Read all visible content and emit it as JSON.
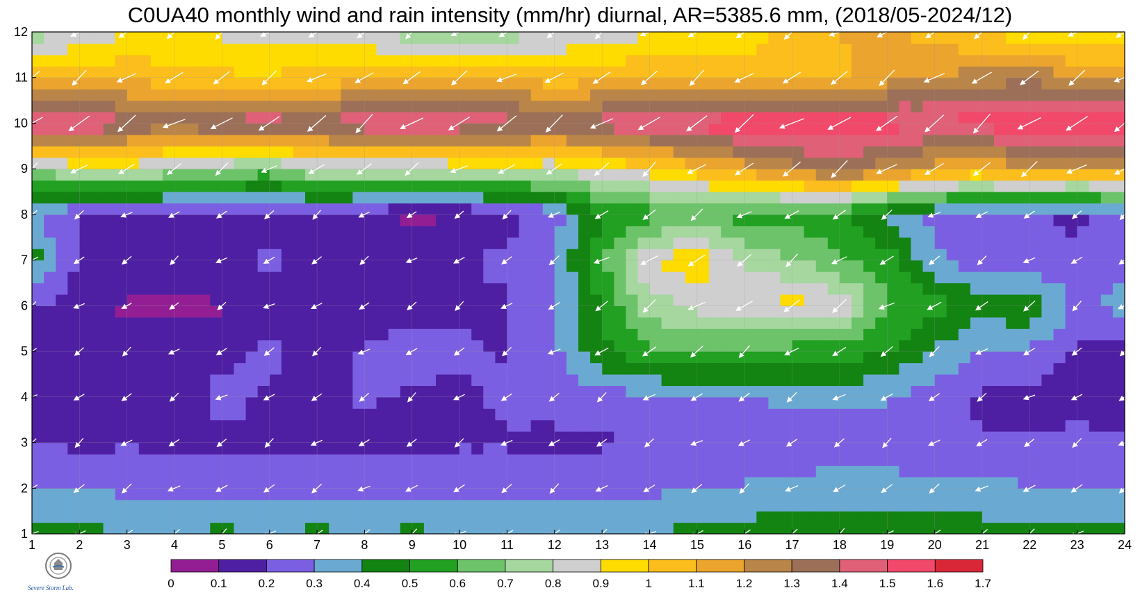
{
  "title": "C0UA40 monthly wind and rain intensity (mm/hr) diurnal, AR=5385.6 mm, (2018/05-2024/12)",
  "chart_data": {
    "type": "heatmap",
    "title": "C0UA40 monthly wind and rain intensity (mm/hr) diurnal, AR=5385.6 mm, (2018/05-2024/12)",
    "xlabel": "",
    "ylabel": "",
    "x": [
      1,
      2,
      3,
      4,
      5,
      6,
      7,
      8,
      9,
      10,
      11,
      12,
      13,
      14,
      15,
      16,
      17,
      18,
      19,
      20,
      21,
      22,
      23,
      24
    ],
    "y": [
      1,
      2,
      3,
      4,
      5,
      6,
      7,
      8,
      9,
      10,
      11,
      12
    ],
    "xlim": [
      1,
      24
    ],
    "ylim": [
      1,
      12
    ],
    "x_ticks": [
      "1",
      "2",
      "3",
      "4",
      "5",
      "6",
      "7",
      "8",
      "9",
      "10",
      "11",
      "12",
      "13",
      "14",
      "15",
      "16",
      "17",
      "18",
      "19",
      "20",
      "21",
      "22",
      "23",
      "24"
    ],
    "y_ticks": [
      "1",
      "2",
      "3",
      "4",
      "5",
      "6",
      "7",
      "8",
      "9",
      "10",
      "11",
      "12"
    ],
    "grid": true,
    "rain_intensity_mm_per_hr": [
      [
        0.45,
        0.42,
        0.41,
        0.41,
        0.42,
        0.41,
        0.42,
        0.41,
        0.42,
        0.41,
        0.41,
        0.39,
        0.38,
        0.41,
        0.42,
        0.45,
        0.46,
        0.47,
        0.47,
        0.46,
        0.45,
        0.43,
        0.42,
        0.42
      ],
      [
        0.3,
        0.3,
        0.28,
        0.27,
        0.27,
        0.26,
        0.28,
        0.26,
        0.28,
        0.27,
        0.27,
        0.26,
        0.27,
        0.28,
        0.3,
        0.31,
        0.33,
        0.35,
        0.34,
        0.33,
        0.32,
        0.31,
        0.31,
        0.3
      ],
      [
        0.2,
        0.18,
        0.19,
        0.18,
        0.19,
        0.18,
        0.18,
        0.17,
        0.18,
        0.19,
        0.19,
        0.18,
        0.19,
        0.2,
        0.21,
        0.22,
        0.23,
        0.25,
        0.24,
        0.22,
        0.21,
        0.21,
        0.22,
        0.2
      ],
      [
        0.18,
        0.17,
        0.18,
        0.17,
        0.22,
        0.19,
        0.18,
        0.21,
        0.19,
        0.18,
        0.22,
        0.23,
        0.25,
        0.28,
        0.3,
        0.3,
        0.32,
        0.33,
        0.31,
        0.26,
        0.18,
        0.17,
        0.17,
        0.19
      ],
      [
        0.17,
        0.16,
        0.17,
        0.16,
        0.18,
        0.22,
        0.16,
        0.21,
        0.23,
        0.22,
        0.19,
        0.28,
        0.48,
        0.58,
        0.62,
        0.58,
        0.55,
        0.55,
        0.5,
        0.38,
        0.28,
        0.28,
        0.18,
        0.17
      ],
      [
        0.2,
        0.15,
        0.08,
        0.08,
        0.09,
        0.17,
        0.18,
        0.15,
        0.17,
        0.18,
        0.19,
        0.29,
        0.52,
        0.75,
        0.82,
        0.88,
        0.95,
        0.88,
        0.62,
        0.55,
        0.45,
        0.5,
        0.28,
        0.33
      ],
      [
        0.45,
        0.19,
        0.18,
        0.17,
        0.18,
        0.21,
        0.18,
        0.16,
        0.14,
        0.19,
        0.22,
        0.31,
        0.58,
        0.9,
        0.98,
        0.78,
        0.7,
        0.62,
        0.55,
        0.32,
        0.22,
        0.21,
        0.21,
        0.28
      ],
      [
        0.32,
        0.18,
        0.18,
        0.18,
        0.18,
        0.19,
        0.18,
        0.16,
        0.08,
        0.1,
        0.17,
        0.25,
        0.48,
        0.55,
        0.62,
        0.55,
        0.55,
        0.52,
        0.38,
        0.28,
        0.25,
        0.22,
        0.18,
        0.3
      ],
      [
        0.72,
        0.82,
        0.85,
        0.75,
        0.72,
        0.65,
        0.82,
        0.78,
        0.8,
        0.82,
        0.85,
        0.82,
        0.9,
        0.95,
        1.05,
        1.15,
        1.25,
        1.35,
        1.25,
        1.15,
        1.1,
        1.2,
        1.15,
        1.2
      ],
      [
        1.55,
        1.55,
        1.4,
        1.35,
        1.42,
        1.48,
        1.4,
        1.5,
        1.52,
        1.48,
        1.45,
        1.4,
        1.45,
        1.52,
        1.55,
        1.58,
        1.6,
        1.58,
        1.55,
        1.52,
        1.55,
        1.58,
        1.55,
        1.55
      ],
      [
        1.05,
        1.05,
        1.08,
        1.05,
        1.02,
        1.0,
        1.05,
        1.05,
        1.08,
        1.1,
        1.08,
        1.05,
        1.06,
        1.1,
        1.08,
        1.05,
        1.05,
        1.08,
        1.15,
        1.2,
        1.25,
        1.28,
        1.2,
        1.15
      ],
      [
        0.72,
        0.85,
        0.88,
        0.9,
        0.88,
        0.88,
        0.85,
        0.82,
        0.75,
        0.72,
        0.75,
        0.8,
        0.85,
        0.88,
        0.92,
        0.95,
        1.05,
        1.1,
        1.15,
        1.05,
        1.0,
        0.92,
        0.88,
        0.92
      ]
    ],
    "wind_direction": "predominantly from the northeast",
    "wind_vectors_color": "#ffffff",
    "colorbar": {
      "levels": [
        "0",
        "0.1",
        "0.2",
        "0.3",
        "0.4",
        "0.5",
        "0.6",
        "0.7",
        "0.8",
        "0.9",
        "1",
        "1.1",
        "1.2",
        "1.3",
        "1.4",
        "1.5",
        "1.6",
        "1.7"
      ],
      "colors": [
        "#931e94",
        "#4f1fa3",
        "#7b5fe3",
        "#6aaad2",
        "#138312",
        "#21a022",
        "#6dc36a",
        "#a5d79f",
        "#cfcfcf",
        "#ffdc00",
        "#fbbe1c",
        "#eba42e",
        "#b98548",
        "#9c7058",
        "#e06078",
        "#f2486a",
        "#d92738"
      ]
    },
    "contour_line_color": "#f4a21d"
  },
  "logo": {
    "text": "Severe Storm Lab."
  }
}
